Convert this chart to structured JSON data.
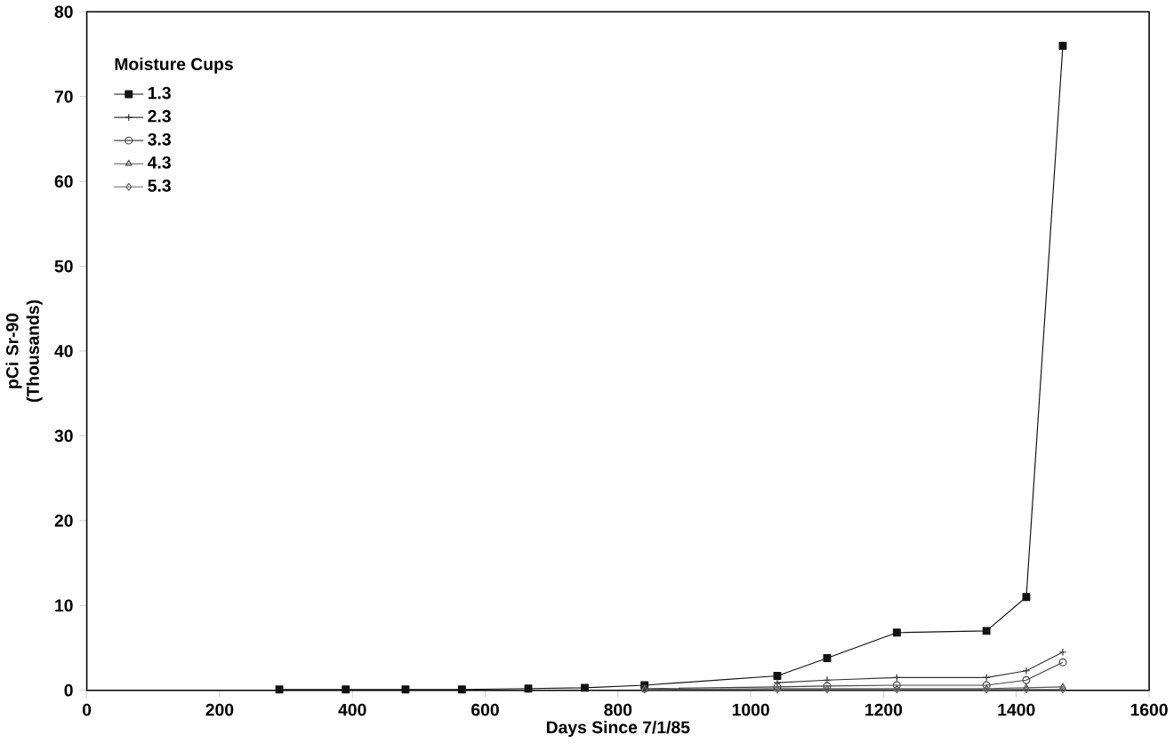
{
  "chart_data": {
    "type": "line",
    "xlabel": "Days Since 7/1/85",
    "ylabel": "pCi Sr-90 (Thousands)",
    "legend_title": "Moisture Cups",
    "xlim": [
      0,
      1600
    ],
    "xticks": [
      0,
      200,
      400,
      600,
      800,
      1000,
      1200,
      1400,
      1600
    ],
    "ylim": [
      0,
      80
    ],
    "yticks": [
      0,
      10,
      20,
      30,
      40,
      50,
      60,
      70,
      80
    ],
    "grid": false,
    "legend": "top left",
    "line_style": "solid",
    "series": [
      {
        "name": "1.3",
        "color": "#111111",
        "marker": "square",
        "x": [
          290,
          390,
          480,
          565,
          665,
          750,
          840,
          1040,
          1115,
          1220,
          1355,
          1415,
          1470
        ],
        "values": [
          0.1,
          0.1,
          0.1,
          0.1,
          0.2,
          0.3,
          0.6,
          1.7,
          3.8,
          6.8,
          7,
          11,
          76
        ]
      },
      {
        "name": "2.3",
        "color": "#333333",
        "marker": "cross",
        "x": [
          1040,
          1115,
          1220,
          1355,
          1415,
          1470
        ],
        "values": [
          0.9,
          1.2,
          1.5,
          1.5,
          2.3,
          4.5
        ]
      },
      {
        "name": "3.3",
        "color": "#444444",
        "marker": "circle",
        "x": [
          840,
          1040,
          1115,
          1220,
          1355,
          1415,
          1470
        ],
        "values": [
          0.2,
          0.4,
          0.5,
          0.6,
          0.6,
          1.2,
          3.3
        ]
      },
      {
        "name": "4.3",
        "color": "#555555",
        "marker": "triangle",
        "x": [
          840,
          1040,
          1115,
          1220,
          1355,
          1415,
          1470
        ],
        "values": [
          0.1,
          0.2,
          0.2,
          0.2,
          0.2,
          0.3,
          0.4
        ]
      },
      {
        "name": "5.3",
        "color": "#666666",
        "marker": "diamond",
        "x": [
          840,
          1040,
          1115,
          1220,
          1355,
          1415,
          1470
        ],
        "values": [
          0.1,
          0.1,
          0.1,
          0.1,
          0.1,
          0.1,
          0.1
        ]
      }
    ]
  }
}
